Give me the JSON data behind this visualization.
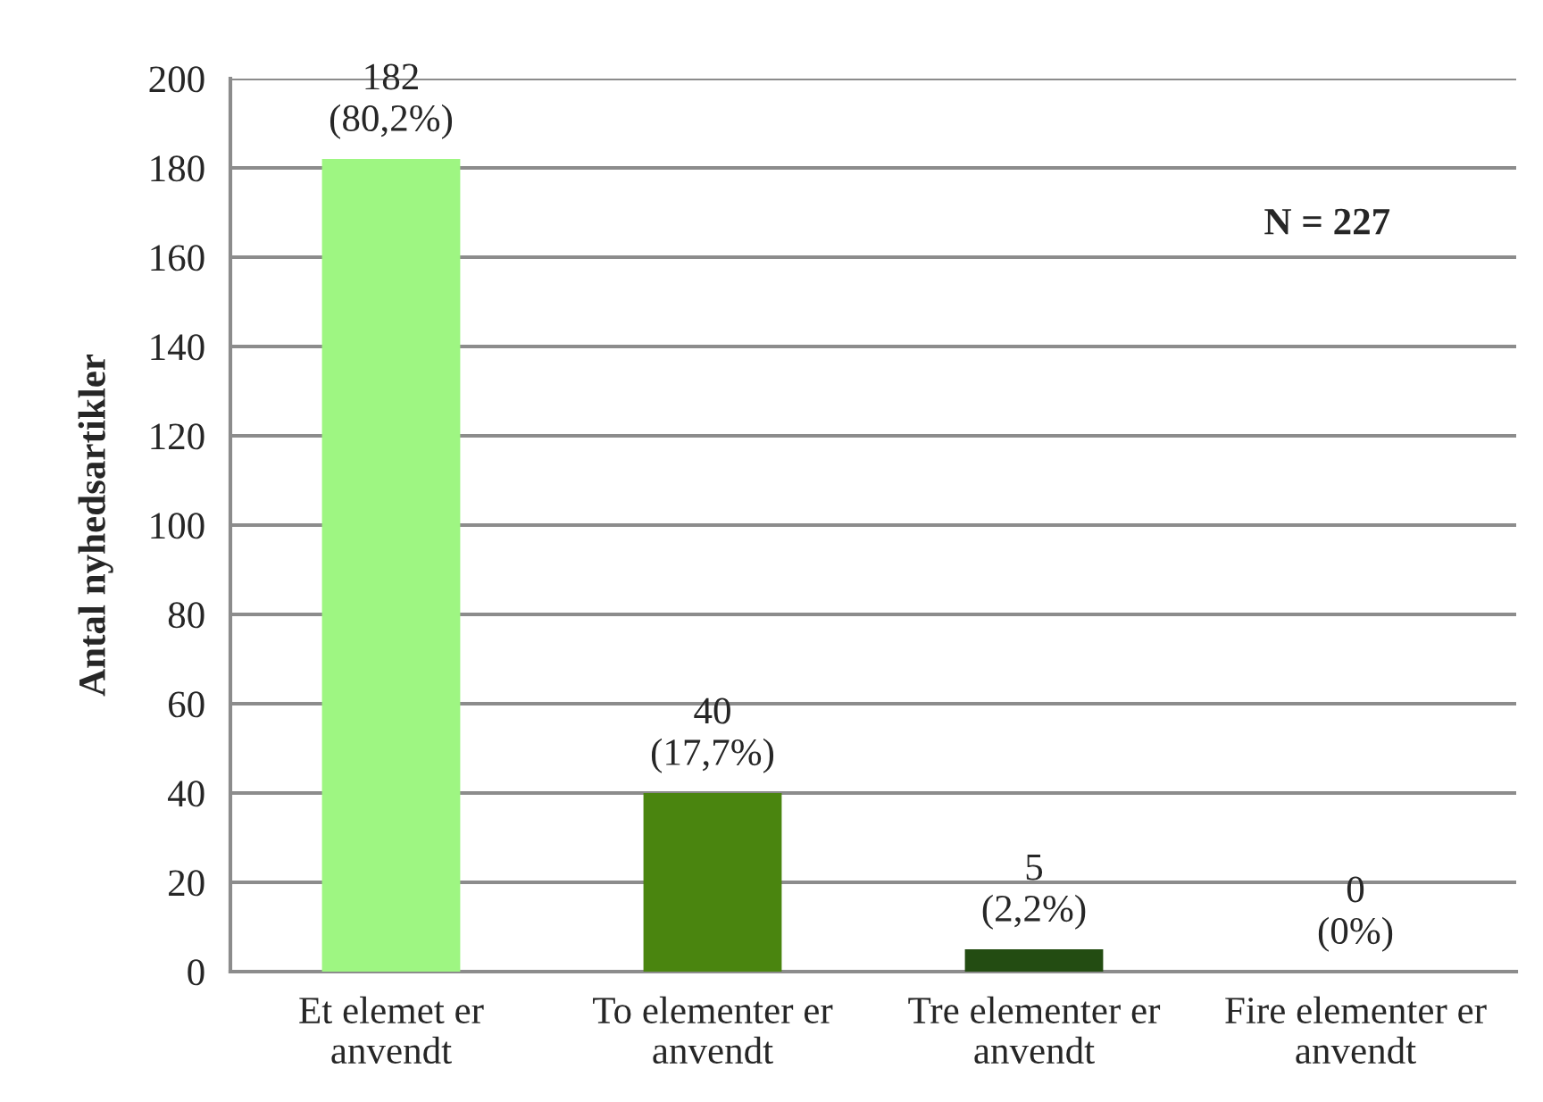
{
  "chart_data": {
    "type": "bar",
    "categories": [
      "Et elemet er\nanvendt",
      "To elementer er\nanvendt",
      "Tre elementer er\nanvendt",
      "Fire elementer er\nanvendt"
    ],
    "values": [
      182,
      40,
      5,
      0
    ],
    "colors": [
      "#9ef682",
      "#4a850f",
      "#234c12",
      "#1a3a0c"
    ],
    "value_labels": [
      "182\n(80,2%)",
      "40\n(17,7%)",
      "5\n(2,2%)",
      "0\n(0%)"
    ],
    "ylabel": "Antal nyhedsartikler",
    "ylim": [
      0,
      200
    ],
    "yticks": [
      0,
      20,
      40,
      60,
      80,
      100,
      120,
      140,
      160,
      180,
      200
    ],
    "grid": "y",
    "annotations": [
      "N = 227"
    ]
  }
}
